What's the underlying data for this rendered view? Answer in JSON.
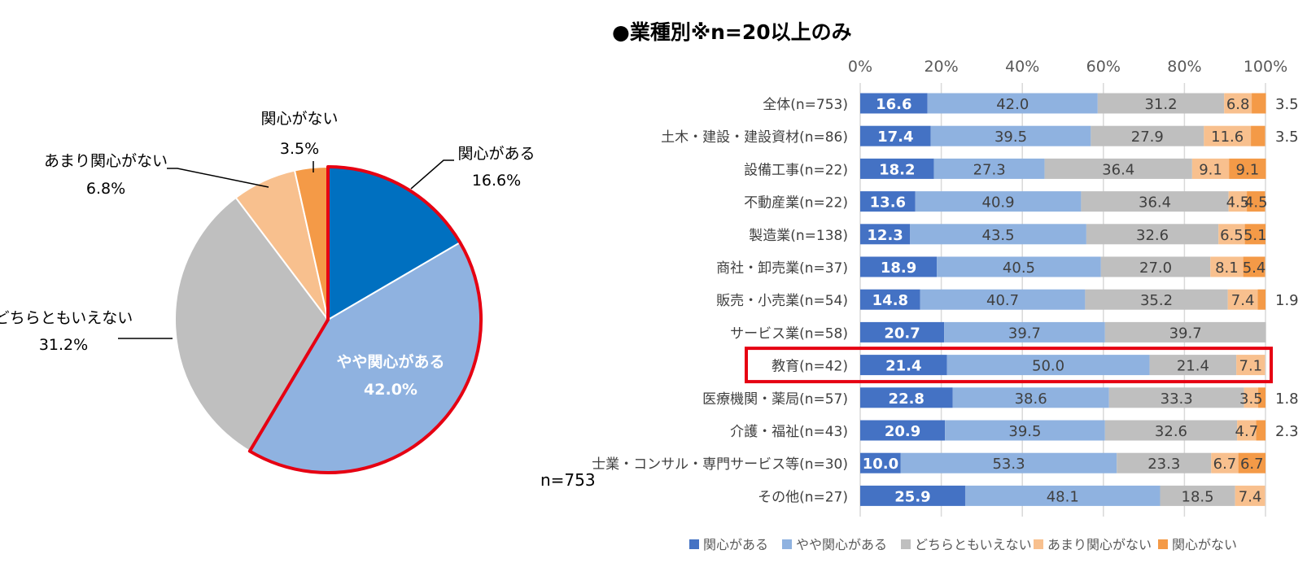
{
  "colors": {
    "interested": "#4472C4",
    "interested_pie": "#0070C0",
    "somewhat": "#8FB2E0",
    "neutral": "#BFBFBF",
    "not_much": "#F8C08E",
    "not": "#F49A47",
    "highlight": "#E60012"
  },
  "chart_data": [
    {
      "type": "pie",
      "note": "n=753",
      "slices": [
        {
          "name": "関心がある",
          "value": 16.6,
          "label_value": "16.6%"
        },
        {
          "name": "やや関心がある",
          "value": 42.0,
          "label_value": "42.0%"
        },
        {
          "name": "どちらともいえない",
          "value": 31.2,
          "label_value": "31.2%"
        },
        {
          "name": "あまり関心がない",
          "value": 6.8,
          "label_value": "6.8%"
        },
        {
          "name": "関心がない",
          "value": 3.5,
          "label_value": "3.5%"
        }
      ],
      "highlighted_slices": [
        "関心がある",
        "やや関心がある"
      ]
    },
    {
      "type": "bar",
      "orientation": "horizontal-stacked-100",
      "title": "●業種別※n=20以上のみ",
      "xlim": [
        0,
        100
      ],
      "ticks": [
        "0%",
        "20%",
        "40%",
        "60%",
        "80%",
        "100%"
      ],
      "series_names": [
        "関心がある",
        "やや関心がある",
        "どちらともいえない",
        "あまり関心がない",
        "関心がない"
      ],
      "categories": [
        "全体(n=753)",
        "土木・建設・建設資材(n=86)",
        "設備工事(n=22)",
        "不動産業(n=22)",
        "製造業(n=138)",
        "商社・卸売業(n=37)",
        "販売・小売業(n=54)",
        "サービス業(n=58)",
        "教育(n=42)",
        "医療機関・薬局(n=57)",
        "介護・福祉(n=43)",
        "士業・コンサル・専門サービス等(n=30)",
        "その他(n=27)"
      ],
      "rows": [
        {
          "values": [
            16.6,
            42.0,
            31.2,
            6.8,
            3.5
          ],
          "labels": [
            "16.6",
            "42.0",
            "31.2",
            "6.8",
            "3.5"
          ]
        },
        {
          "values": [
            17.4,
            39.5,
            27.9,
            11.6,
            3.5
          ],
          "labels": [
            "17.4",
            "39.5",
            "27.9",
            "11.6",
            "3.5"
          ]
        },
        {
          "values": [
            18.2,
            27.3,
            36.4,
            9.1,
            9.1
          ],
          "labels": [
            "18.2",
            "27.3",
            "36.4",
            "9.1",
            "9.1"
          ]
        },
        {
          "values": [
            13.6,
            40.9,
            36.4,
            4.5,
            4.5
          ],
          "labels": [
            "13.6",
            "40.9",
            "36.4",
            "4.5",
            "4.5"
          ]
        },
        {
          "values": [
            12.3,
            43.5,
            32.6,
            6.5,
            5.1
          ],
          "labels": [
            "12.3",
            "43.5",
            "32.6",
            "6.5",
            "5.1"
          ]
        },
        {
          "values": [
            18.9,
            40.5,
            27.0,
            8.1,
            5.4
          ],
          "labels": [
            "18.9",
            "40.5",
            "27.0",
            "8.1",
            "5.4"
          ]
        },
        {
          "values": [
            14.8,
            40.7,
            35.2,
            7.4,
            1.9
          ],
          "labels": [
            "14.8",
            "40.7",
            "35.2",
            "7.4",
            "1.9"
          ]
        },
        {
          "values": [
            20.7,
            39.7,
            39.7,
            0,
            0
          ],
          "labels": [
            "20.7",
            "39.7",
            "39.7",
            "",
            ""
          ]
        },
        {
          "values": [
            21.4,
            50.0,
            21.4,
            7.1,
            0
          ],
          "labels": [
            "21.4",
            "50.0",
            "21.4",
            "7.1",
            ""
          ]
        },
        {
          "values": [
            22.8,
            38.6,
            33.3,
            3.5,
            1.8
          ],
          "labels": [
            "22.8",
            "38.6",
            "33.3",
            "3.5",
            "1.8"
          ]
        },
        {
          "values": [
            20.9,
            39.5,
            32.6,
            4.7,
            2.3
          ],
          "labels": [
            "20.9",
            "39.5",
            "32.6",
            "4.7",
            "2.3"
          ]
        },
        {
          "values": [
            10.0,
            53.3,
            23.3,
            6.7,
            6.7
          ],
          "labels": [
            "10.0",
            "53.3",
            "23.3",
            "6.7",
            "6.7"
          ]
        },
        {
          "values": [
            25.9,
            48.1,
            18.5,
            7.4,
            0
          ],
          "labels": [
            "25.9",
            "48.1",
            "18.5",
            "7.4",
            ""
          ]
        }
      ],
      "highlighted_category": "教育(n=42)",
      "legend": [
        "関心がある",
        "やや関心がある",
        "どちらともいえない",
        "あまり関心がない",
        "関心がない"
      ]
    }
  ]
}
